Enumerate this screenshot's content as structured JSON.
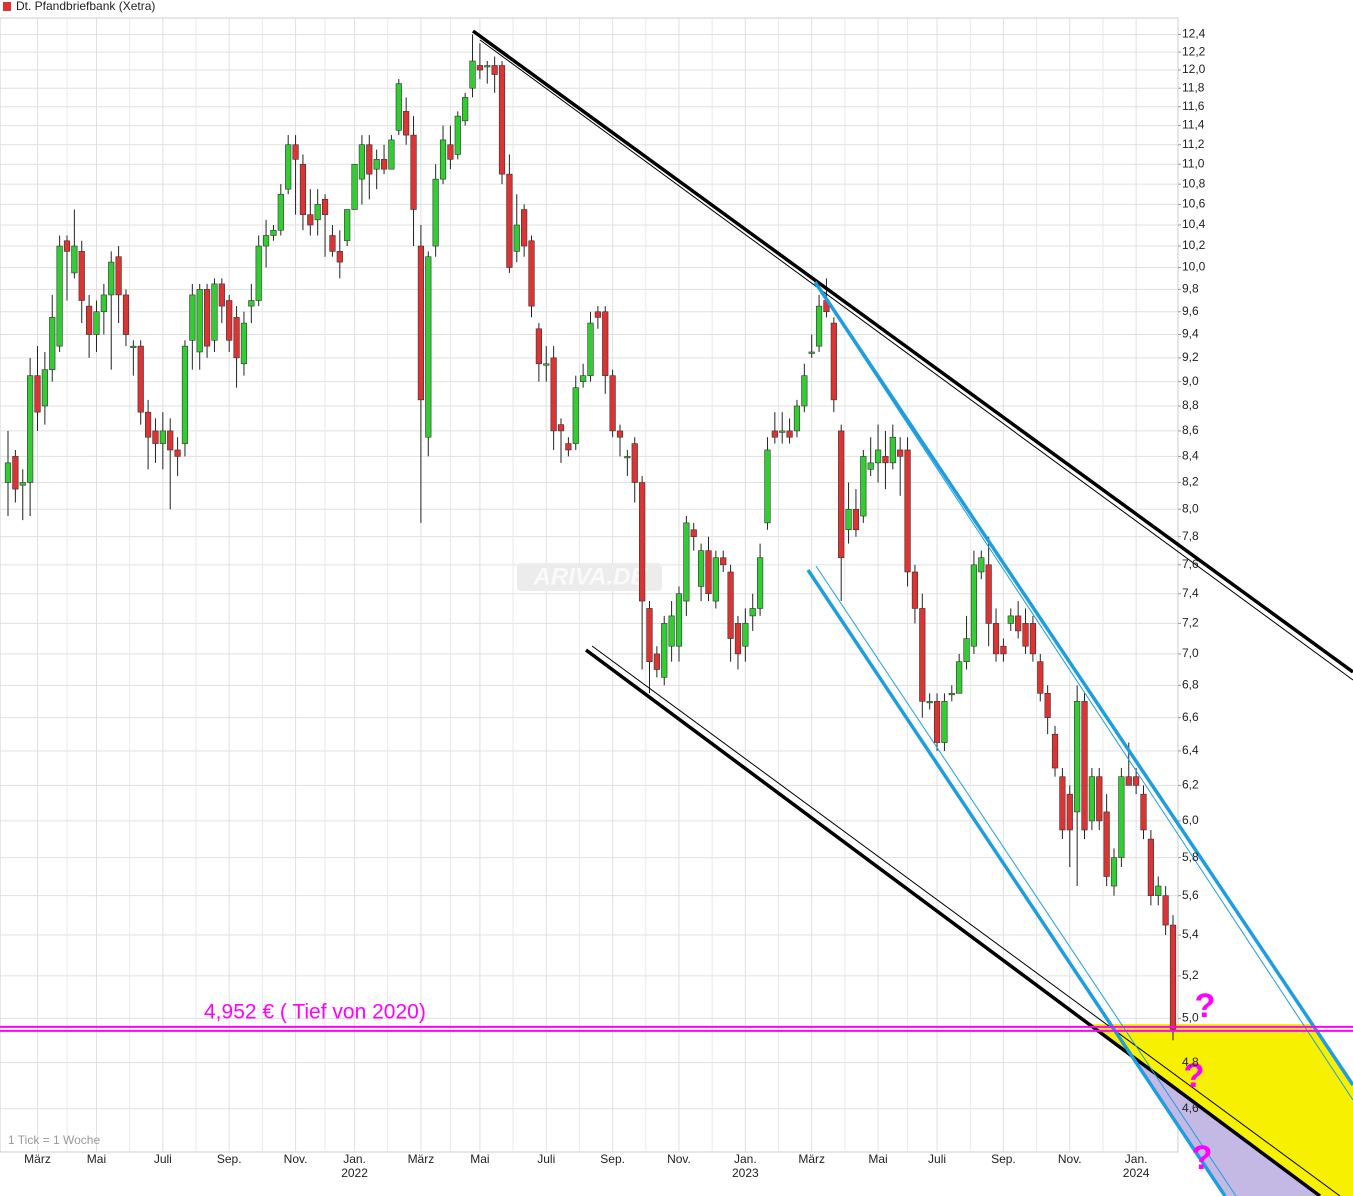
{
  "chart_data": {
    "type": "candlestick",
    "log_scale": true,
    "grid": true,
    "ylim": [
      4.42,
      12.59
    ],
    "yticks": [
      {
        "value": 4.6,
        "label": "4,6"
      },
      {
        "value": 4.8,
        "label": "4,8"
      },
      {
        "value": 5.0,
        "label": "5,0"
      },
      {
        "value": 5.2,
        "label": "5,2"
      },
      {
        "value": 5.4,
        "label": "5,4"
      },
      {
        "value": 5.6,
        "label": "5,6"
      },
      {
        "value": 5.8,
        "label": "5,8"
      },
      {
        "value": 6.0,
        "label": "6,0"
      },
      {
        "value": 6.2,
        "label": "6,2"
      },
      {
        "value": 6.4,
        "label": "6,4"
      },
      {
        "value": 6.6,
        "label": "6,6"
      },
      {
        "value": 6.8,
        "label": "6,8"
      },
      {
        "value": 7.0,
        "label": "7,0"
      },
      {
        "value": 7.2,
        "label": "7,2"
      },
      {
        "value": 7.4,
        "label": "7,4"
      },
      {
        "value": 7.6,
        "label": "7,6"
      },
      {
        "value": 7.8,
        "label": "7,8"
      },
      {
        "value": 8.0,
        "label": "8,0"
      },
      {
        "value": 8.2,
        "label": "8,2"
      },
      {
        "value": 8.4,
        "label": "8,4"
      },
      {
        "value": 8.6,
        "label": "8,6"
      },
      {
        "value": 8.8,
        "label": "8,8"
      },
      {
        "value": 9.0,
        "label": "9,0"
      },
      {
        "value": 9.2,
        "label": "9,2"
      },
      {
        "value": 9.4,
        "label": "9,4"
      },
      {
        "value": 9.6,
        "label": "9,6"
      },
      {
        "value": 9.8,
        "label": "9,8"
      },
      {
        "value": 10.0,
        "label": "10,0"
      },
      {
        "value": 10.2,
        "label": "10,2"
      },
      {
        "value": 10.4,
        "label": "10,4"
      },
      {
        "value": 10.6,
        "label": "10,6"
      },
      {
        "value": 10.8,
        "label": "10,8"
      },
      {
        "value": 11.0,
        "label": "11,0"
      },
      {
        "value": 11.2,
        "label": "11,2"
      },
      {
        "value": 11.4,
        "label": "11,4"
      },
      {
        "value": 11.6,
        "label": "11,6"
      },
      {
        "value": 11.8,
        "label": "11,8"
      },
      {
        "value": 12.0,
        "label": "12,0"
      },
      {
        "value": 12.2,
        "label": "12,2"
      },
      {
        "value": 12.4,
        "label": "12,4"
      }
    ],
    "categories": [
      null,
      null,
      null,
      null,
      "März",
      null,
      null,
      null,
      null,
      null,
      null,
      null,
      "Mai",
      null,
      null,
      null,
      null,
      null,
      null,
      null,
      null,
      "Juli",
      null,
      null,
      null,
      null,
      null,
      null,
      null,
      null,
      "Sep.",
      null,
      null,
      null,
      null,
      null,
      null,
      null,
      null,
      "Nov.",
      null,
      null,
      null,
      null,
      null,
      null,
      null,
      "Jan.",
      null,
      null,
      null,
      null,
      null,
      null,
      null,
      null,
      "März",
      null,
      null,
      null,
      null,
      null,
      null,
      null,
      "Mai",
      null,
      null,
      null,
      null,
      null,
      null,
      null,
      null,
      "Juli",
      null,
      null,
      null,
      null,
      null,
      null,
      null,
      null,
      "Sep.",
      null,
      null,
      null,
      null,
      null,
      null,
      null,
      null,
      "Nov.",
      null,
      null,
      null,
      null,
      null,
      null,
      null,
      null,
      "Jan.",
      null,
      null,
      null,
      null,
      null,
      null,
      null,
      null,
      "März",
      null,
      null,
      null,
      null,
      null,
      null,
      null,
      null,
      "Mai",
      null,
      null,
      null,
      null,
      null,
      null,
      null,
      "Juli",
      null,
      null,
      null,
      null,
      null,
      null,
      null,
      null,
      "Sep.",
      null,
      null,
      null,
      null,
      null,
      null,
      null,
      null,
      "Nov.",
      null,
      null,
      null,
      null,
      null,
      null,
      null,
      null,
      "Jan.",
      null,
      null,
      null,
      null,
      null
    ],
    "years": [
      null,
      null,
      null,
      null,
      null,
      null,
      null,
      null,
      null,
      null,
      null,
      null,
      null,
      null,
      null,
      null,
      null,
      null,
      null,
      null,
      null,
      null,
      null,
      null,
      null,
      null,
      null,
      null,
      null,
      null,
      null,
      null,
      null,
      null,
      null,
      null,
      null,
      null,
      null,
      null,
      null,
      null,
      null,
      null,
      null,
      null,
      null,
      "2022",
      null,
      null,
      null,
      null,
      null,
      null,
      null,
      null,
      null,
      null,
      null,
      null,
      null,
      null,
      null,
      null,
      null,
      null,
      null,
      null,
      null,
      null,
      null,
      null,
      null,
      null,
      null,
      null,
      null,
      null,
      null,
      null,
      null,
      null,
      null,
      null,
      null,
      null,
      null,
      null,
      null,
      null,
      null,
      null,
      null,
      null,
      null,
      null,
      null,
      null,
      null,
      null,
      "2023",
      null,
      null,
      null,
      null,
      null,
      null,
      null,
      null,
      null,
      null,
      null,
      null,
      null,
      null,
      null,
      null,
      null,
      null,
      null,
      null,
      null,
      null,
      null,
      null,
      null,
      null,
      null,
      null,
      null,
      null,
      null,
      null,
      null,
      null,
      null,
      null,
      null,
      null,
      null,
      null,
      null,
      null,
      null,
      null,
      null,
      null,
      null,
      null,
      null,
      null,
      null,
      null,
      "2024",
      null,
      null,
      null,
      null,
      null
    ],
    "series": [
      {
        "name": "Dt. Pfandbriefbank (Xetra)",
        "color": "#dd3333",
        "up_color": "#33cc33",
        "down_color": "#dd3333",
        "open": [
          8.2,
          8.4,
          8.18,
          8.2,
          9.05,
          8.8,
          9.1,
          9.3,
          10.25,
          9.95,
          10.15,
          9.65,
          9.4,
          9.6,
          9.75,
          10.1,
          9.75,
          9.3,
          9.3,
          8.75,
          8.6,
          8.5,
          8.6,
          8.45,
          8.5,
          9.35,
          9.25,
          9.8,
          9.35,
          9.85,
          9.7,
          9.55,
          9.15,
          9.65,
          9.7,
          10.2,
          10.3,
          10.35,
          10.75,
          11.2,
          11.0,
          10.5,
          10.45,
          10.65,
          10.3,
          10.15,
          10.25,
          10.55,
          10.85,
          11.2,
          10.95,
          11.05,
          10.95,
          11.35,
          11.55,
          11.3,
          10.2,
          8.55,
          10.2,
          10.85,
          11.2,
          11.1,
          11.45,
          11.8,
          12.05,
          12.05,
          12.05,
          12.05,
          10.9,
          10.15,
          10.55,
          10.25,
          9.45,
          9.15,
          9.2,
          8.65,
          8.5,
          8.5,
          9.0,
          9.05,
          9.6,
          9.6,
          9.05,
          8.6,
          8.4,
          8.5,
          8.2,
          7.3,
          7.0,
          6.85,
          7.05,
          7.05,
          7.35,
          7.85,
          7.45,
          7.7,
          7.35,
          7.65,
          7.55,
          7.2,
          7.05,
          7.25,
          7.3,
          7.9,
          8.6,
          8.6,
          8.6,
          8.6,
          8.8,
          9.25,
          9.3,
          9.7,
          9.5,
          8.6,
          7.85,
          8.0,
          7.95,
          8.3,
          8.35,
          8.4,
          8.35,
          8.45,
          8.45,
          7.55,
          7.3,
          6.7,
          6.7,
          6.45,
          6.75,
          6.75,
          6.95,
          7.05,
          7.55,
          7.6,
          7.2,
          7.05,
          7.2,
          7.25,
          7.2,
          7.2,
          6.95,
          6.75,
          6.5,
          6.25,
          6.15,
          6.05,
          6.7,
          6.0,
          6.25,
          6.05,
          5.65,
          5.8,
          6.25,
          6.25,
          6.15,
          5.9,
          5.6,
          5.6,
          5.45
        ],
        "high": [
          8.6,
          8.45,
          8.3,
          9.2,
          9.3,
          9.25,
          9.75,
          10.3,
          10.3,
          10.55,
          10.25,
          9.75,
          9.7,
          9.85,
          10.15,
          10.2,
          9.8,
          9.35,
          9.35,
          8.85,
          8.7,
          8.75,
          8.7,
          8.55,
          9.35,
          9.85,
          9.85,
          9.85,
          9.9,
          9.9,
          9.75,
          9.65,
          9.6,
          9.85,
          10.3,
          10.45,
          10.4,
          10.8,
          11.3,
          11.3,
          11.1,
          10.75,
          10.75,
          10.7,
          10.4,
          10.35,
          10.55,
          11.0,
          11.3,
          11.3,
          11.15,
          11.2,
          11.3,
          11.9,
          11.7,
          11.5,
          10.4,
          10.15,
          11.0,
          11.4,
          11.4,
          11.55,
          11.75,
          12.4,
          12.3,
          12.1,
          12.15,
          12.1,
          11.1,
          10.7,
          10.6,
          10.3,
          9.5,
          9.3,
          9.3,
          8.7,
          8.55,
          9.05,
          9.15,
          9.6,
          9.65,
          9.65,
          9.1,
          8.65,
          8.45,
          8.55,
          8.25,
          7.35,
          7.05,
          7.25,
          7.35,
          7.45,
          7.95,
          7.9,
          7.75,
          7.8,
          7.7,
          7.7,
          7.6,
          7.25,
          7.3,
          7.4,
          7.75,
          8.55,
          8.75,
          8.75,
          8.7,
          8.85,
          9.15,
          9.4,
          9.75,
          9.9,
          9.55,
          8.65,
          8.2,
          8.15,
          8.45,
          8.55,
          8.65,
          8.6,
          8.65,
          8.55,
          8.55,
          7.6,
          7.4,
          6.75,
          6.75,
          6.75,
          6.8,
          7.0,
          7.25,
          7.7,
          7.7,
          7.8,
          7.3,
          7.1,
          7.3,
          7.35,
          7.3,
          7.25,
          7.0,
          6.8,
          6.55,
          6.3,
          6.2,
          6.8,
          6.75,
          6.3,
          6.3,
          6.15,
          5.85,
          6.3,
          6.45,
          6.3,
          6.2,
          5.95,
          5.7,
          5.65,
          5.5
        ],
        "low": [
          7.95,
          8.05,
          7.92,
          7.95,
          8.6,
          8.65,
          9.0,
          9.25,
          9.7,
          9.9,
          9.5,
          9.2,
          9.25,
          9.4,
          9.1,
          9.5,
          9.3,
          9.05,
          8.65,
          8.3,
          8.35,
          8.3,
          8.0,
          8.25,
          8.4,
          9.1,
          9.1,
          9.2,
          9.25,
          9.5,
          9.25,
          8.95,
          9.05,
          9.5,
          9.65,
          10.0,
          10.25,
          10.3,
          10.7,
          10.5,
          10.35,
          10.3,
          10.3,
          10.1,
          10.1,
          9.9,
          10.2,
          10.55,
          10.6,
          10.65,
          10.75,
          10.9,
          10.95,
          11.3,
          11.2,
          10.2,
          7.9,
          8.4,
          10.1,
          10.8,
          10.95,
          11.05,
          11.4,
          11.7,
          11.9,
          11.85,
          11.75,
          10.8,
          9.95,
          10.05,
          10.1,
          9.55,
          9.0,
          9.0,
          8.45,
          8.35,
          8.4,
          8.45,
          8.95,
          9.0,
          9.45,
          8.9,
          8.55,
          8.4,
          8.25,
          8.05,
          6.9,
          6.75,
          6.85,
          6.8,
          6.95,
          6.95,
          7.25,
          7.7,
          7.35,
          7.35,
          7.3,
          7.55,
          6.95,
          6.9,
          6.95,
          7.15,
          7.25,
          7.85,
          8.5,
          8.5,
          8.5,
          8.55,
          8.75,
          9.2,
          9.25,
          9.55,
          8.75,
          7.35,
          7.75,
          7.8,
          7.9,
          8.25,
          8.2,
          8.15,
          8.3,
          8.1,
          7.45,
          7.2,
          6.6,
          6.65,
          6.4,
          6.4,
          6.7,
          6.75,
          6.9,
          7.0,
          7.5,
          7.05,
          6.95,
          6.95,
          7.15,
          7.1,
          7.0,
          6.95,
          6.7,
          6.5,
          6.25,
          5.9,
          5.75,
          5.65,
          5.9,
          5.95,
          5.95,
          5.65,
          5.6,
          5.75,
          6.2,
          6.15,
          5.9,
          5.55,
          5.55,
          5.4,
          4.9
        ],
        "close": [
          8.35,
          8.15,
          8.2,
          9.05,
          8.75,
          9.1,
          9.55,
          10.2,
          10.15,
          10.2,
          9.7,
          9.4,
          9.6,
          9.75,
          10.05,
          9.75,
          9.4,
          9.3,
          8.75,
          8.55,
          8.5,
          8.6,
          8.45,
          8.4,
          9.3,
          9.75,
          9.8,
          9.3,
          9.85,
          9.65,
          9.35,
          9.2,
          9.5,
          9.7,
          10.2,
          10.3,
          10.35,
          10.7,
          11.2,
          11.05,
          10.5,
          10.4,
          10.6,
          10.5,
          10.15,
          10.05,
          10.55,
          11.0,
          11.2,
          10.9,
          11.05,
          10.95,
          11.25,
          11.85,
          11.3,
          10.55,
          8.85,
          10.1,
          10.85,
          11.25,
          11.05,
          11.5,
          11.7,
          12.1,
          12.0,
          12.05,
          11.95,
          10.9,
          10.0,
          10.4,
          10.2,
          9.65,
          9.15,
          9.15,
          8.6,
          8.6,
          8.45,
          8.95,
          9.05,
          9.5,
          9.55,
          9.05,
          8.6,
          8.55,
          8.4,
          8.2,
          7.35,
          6.95,
          6.9,
          7.2,
          7.25,
          7.4,
          7.9,
          7.8,
          7.7,
          7.4,
          7.65,
          7.6,
          7.1,
          7.0,
          7.2,
          7.3,
          7.65,
          8.45,
          8.55,
          8.6,
          8.55,
          8.8,
          9.05,
          9.25,
          9.65,
          9.6,
          8.85,
          7.65,
          8.0,
          7.85,
          8.4,
          8.35,
          8.45,
          8.35,
          8.55,
          8.4,
          7.55,
          7.3,
          6.7,
          6.7,
          6.45,
          6.7,
          6.75,
          6.95,
          7.1,
          7.6,
          7.65,
          7.2,
          7.0,
          7.0,
          7.25,
          7.15,
          7.05,
          7.0,
          6.75,
          6.6,
          6.3,
          5.95,
          5.95,
          6.7,
          5.95,
          6.25,
          6.0,
          5.7,
          5.8,
          6.25,
          6.2,
          6.2,
          5.95,
          5.6,
          5.65,
          5.45,
          4.95
        ]
      }
    ],
    "support_line": {
      "value": 4.952,
      "label": "4,952 € ( Tief von 2020)",
      "color": "#ff00ff"
    },
    "question_marks": [
      "?",
      "?",
      "?"
    ],
    "note": "1 Tick = 1 Woche",
    "watermark": "ARIVA.DE"
  }
}
